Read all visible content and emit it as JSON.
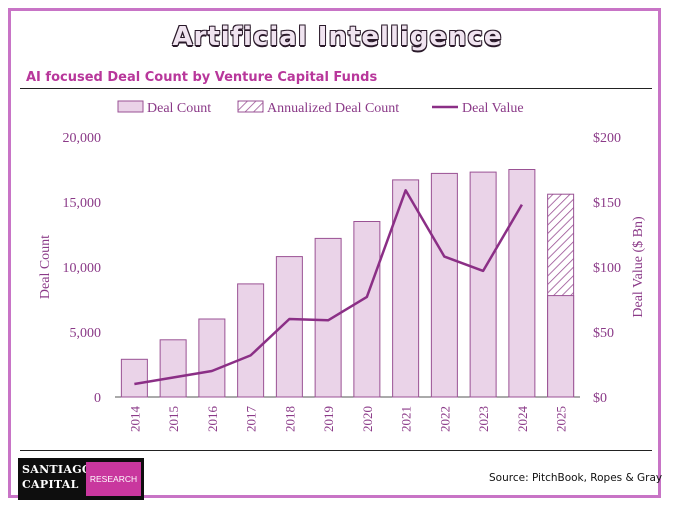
{
  "page": {
    "title": "Artificial Intelligence",
    "subtitle": "AI focused Deal Count by Venture Capital Funds",
    "source": "Source: PitchBook, Ropes & Gray",
    "logo": {
      "line1": "SANTIAGO",
      "line2": "CAPITAL",
      "badge": "RESEARCH"
    }
  },
  "colors": {
    "frame": "#c874c6",
    "bar_fill": "#ead3e8",
    "bar_stroke": "#9a5294",
    "line": "#8b2f86",
    "axis_text": "#8b3a88",
    "subtitle": "#b8379b"
  },
  "chart_data": {
    "type": "bar",
    "title": "AI focused Deal Count by Venture Capital Funds",
    "categories": [
      "2014",
      "2015",
      "2016",
      "2017",
      "2018",
      "2019",
      "2020",
      "2021",
      "2022",
      "2023",
      "2024",
      "2025"
    ],
    "series": [
      {
        "name": "Deal Count",
        "type": "bar",
        "axis": "left",
        "values": [
          2900,
          4400,
          6000,
          8700,
          10800,
          12200,
          13500,
          16700,
          17200,
          17300,
          17500,
          7800
        ]
      },
      {
        "name": "Annualized Deal Count",
        "type": "bar-hatched",
        "axis": "left",
        "values": [
          null,
          null,
          null,
          null,
          null,
          null,
          null,
          null,
          null,
          null,
          null,
          15600
        ]
      },
      {
        "name": "Deal Value",
        "type": "line",
        "axis": "right",
        "values": [
          10,
          15,
          20,
          32,
          60,
          59,
          77,
          159,
          108,
          97,
          148,
          null
        ]
      }
    ],
    "legend": [
      "Deal Count",
      "Annualized Deal Count",
      "Deal Value"
    ],
    "ylabel": "Deal Count",
    "y2label": "Deal Value ($ Bn)",
    "ylim": [
      0,
      20000
    ],
    "y2lim": [
      0,
      200
    ],
    "yticks": [
      "0",
      "5,000",
      "10,000",
      "15,000",
      "20,000"
    ],
    "y2ticks": [
      "$0",
      "$50",
      "$100",
      "$150",
      "$200"
    ],
    "legend_position": "top"
  }
}
